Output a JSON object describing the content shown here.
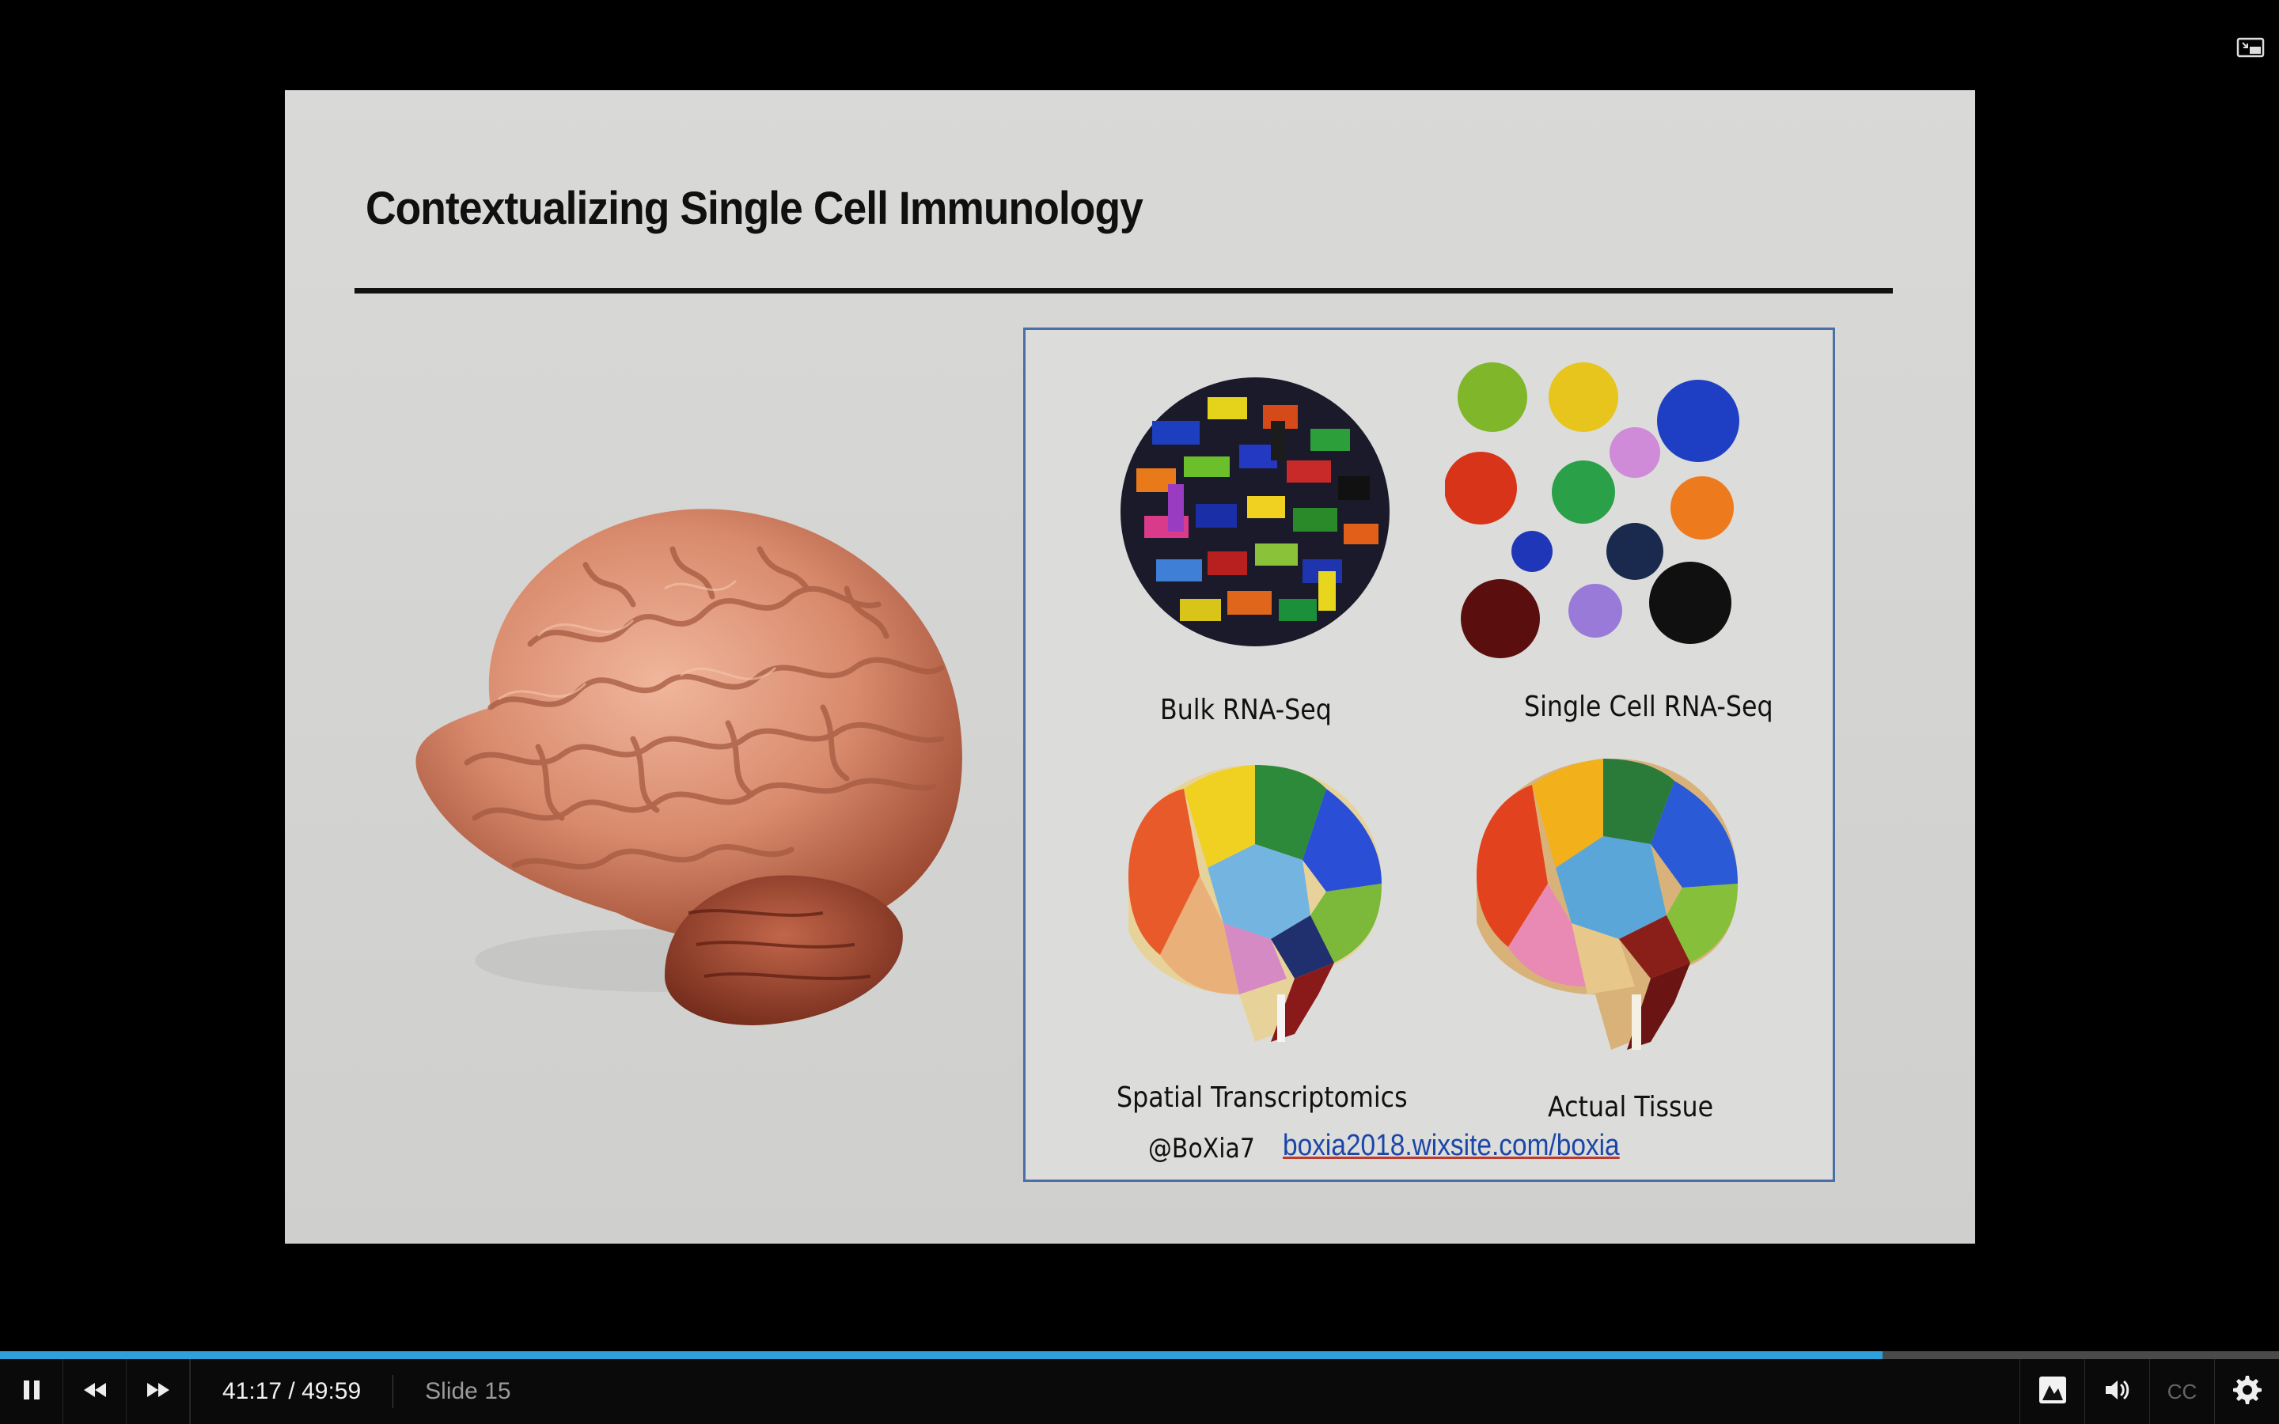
{
  "slide": {
    "title": "Contextualizing Single Cell Immunology",
    "panel": {
      "bulk_caption": "Bulk RNA-Seq",
      "single_caption": "Single Cell RNA-Seq",
      "spatial_caption": "Spatial Transcriptomics",
      "actual_caption": "Actual Tissue",
      "handle": "@BoXia7",
      "link": "boxia2018.wixsite.com/boxia"
    }
  },
  "player": {
    "time": "41:17 / 49:59",
    "slide_label": "Slide 15",
    "progress_fraction": 0.8259,
    "cc_label": "CC",
    "accent_color": "#2ea1dd"
  },
  "icons": {
    "pip": "pip-icon",
    "pause": "pause-icon",
    "rewind": "rewind-icon",
    "forward": "forward-icon",
    "presentation": "presentation-icon",
    "volume": "volume-icon",
    "settings": "gear-icon"
  }
}
